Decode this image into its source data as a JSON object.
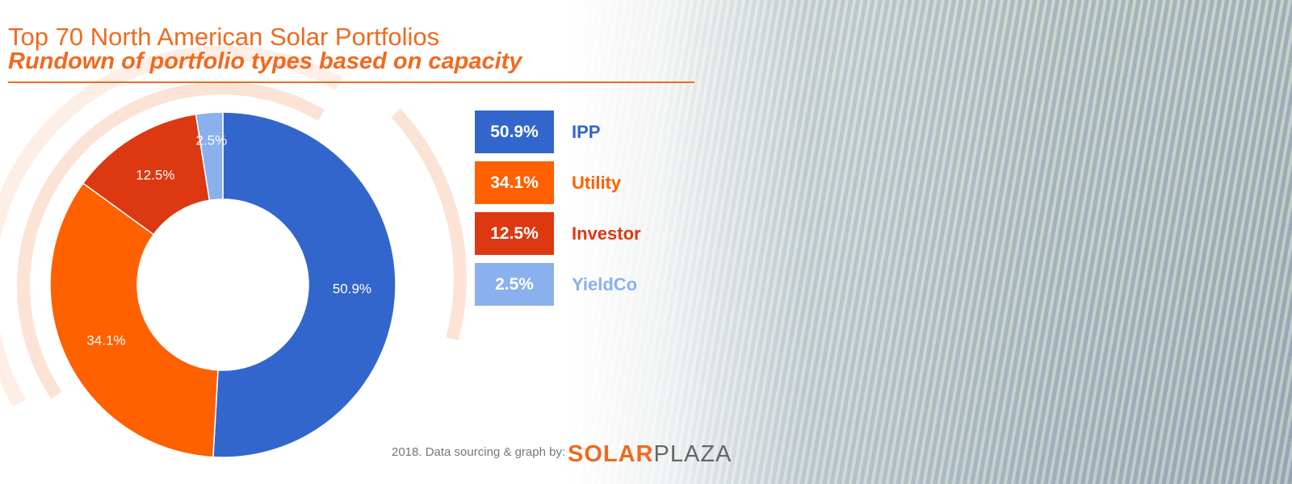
{
  "header": {
    "title": "Top 70 North American Solar Portfolios",
    "subtitle": "Rundown of portfolio types based on capacity"
  },
  "chart_data": {
    "type": "pie",
    "donut": true,
    "title": "Top 70 North American Solar Portfolios",
    "subtitle": "Rundown of portfolio types based on capacity",
    "categories": [
      "IPP",
      "Utility",
      "Investor",
      "YieldCo"
    ],
    "values": [
      50.9,
      34.1,
      12.5,
      2.5
    ],
    "data_labels": [
      "50.9%",
      "34.1%",
      "12.5%",
      "2.5%"
    ],
    "colors": [
      "#3366cc",
      "#ff6000",
      "#dc3912",
      "#8ab0ee"
    ],
    "label_colors": [
      "#3366cc",
      "#ff6000",
      "#dc3912",
      "#8ab0ee"
    ],
    "legend_placement": "right"
  },
  "footer": {
    "text": "2018. Data sourcing & graph by:",
    "logo_bold": "SOLAR",
    "logo_light": "PLAZA"
  }
}
